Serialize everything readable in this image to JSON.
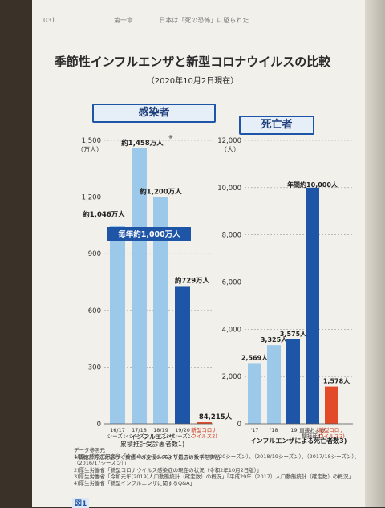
{
  "header": {
    "page_number": "031",
    "chapter": "第一章",
    "chapter_title": "日本は「死の恐怖」に駆られた"
  },
  "title": "季節性インフルエンザと新型コロナウイルスの比較",
  "subtitle": "（2020年10月2日現在）",
  "colors": {
    "light_blue": "#9cc8ea",
    "dark_blue": "#1f55a6",
    "red": "#e24a2a",
    "panel_border": "#1f55a6"
  },
  "chart_data": [
    {
      "type": "bar",
      "title": "感染者",
      "ylabel": "（万人）",
      "y_ticks": [
        "0",
        "300",
        "600",
        "900",
        "1,200",
        "1,500"
      ],
      "ylim": [
        0,
        1500
      ],
      "categories": [
        "16/17\nシーズン",
        "17/18\nシーズン",
        "18/19\nシーズン",
        "19/20\nシーズン",
        "新型コロナ\nウイルス2)"
      ],
      "values": [
        1046,
        1458,
        1200,
        729,
        8.4215
      ],
      "value_labels": [
        "約1,046万人",
        "約1,458万人",
        "約1,200万人",
        "約729万人",
        "84,215人"
      ],
      "bar_colors": [
        "#9cc8ea",
        "#9cc8ea",
        "#9cc8ea",
        "#1f55a6",
        "#e24a2a"
      ],
      "marker_label": "※",
      "banner": "毎年約1,000万人",
      "group_label": "インフルエンザ\n累積推計受診患者数1)",
      "footnote": "※新推計方法に基づく数値への変換0.66より過去の数字を算出"
    },
    {
      "type": "bar",
      "title": "死亡者",
      "ylabel": "（人）",
      "y_ticks": [
        "0",
        "2,000",
        "4,000",
        "6,000",
        "8,000",
        "10,000",
        "12,000"
      ],
      "ylim": [
        0,
        12000
      ],
      "categories": [
        "'17",
        "'18",
        "'19",
        "直接および\n間接死4)",
        "新型コロナ\nウイルス2)"
      ],
      "values": [
        2569,
        3325,
        3575,
        10000,
        1578
      ],
      "value_labels": [
        "2,569人",
        "3,325人",
        "3,575人",
        "年間約10,000人",
        "1,578人"
      ],
      "bar_colors": [
        "#9cc8ea",
        "#9cc8ea",
        "#1f55a6",
        "#1f55a6",
        "#e24a2a"
      ],
      "group_label": "インフルエンザによる死亡者数3)"
    }
  ],
  "notes": {
    "heading": "データ参照元",
    "lines": [
      "1)国立感染症研究所「今冬のインフルエンザについて（2019/20シーズン）、（2018/19シーズン）、（2017/18シーズン）、",
      "（2016/17シーズン）」",
      "2)厚生労働省「新型コロナウイルス感染症の現在の状況（令和2年10月2日版）」",
      "3)厚生労働省「令和元年(2019)人口動態統計（確定数）の概況」「平成29年（2017）人口動態統計（確定数）の概況」",
      "4)厚生労働省「新型インフルエンザに関するQ&A」"
    ]
  },
  "figure_label": "図1"
}
